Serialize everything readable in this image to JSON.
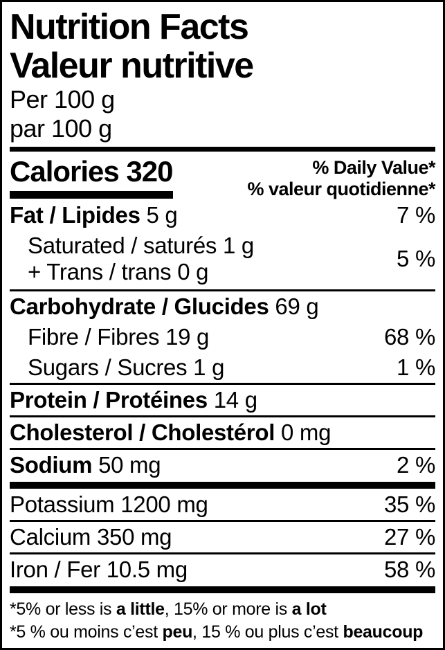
{
  "colors": {
    "text": "#000000",
    "background": "#ffffff",
    "rules": "#000000"
  },
  "header": {
    "title_en": "Nutrition Facts",
    "title_fr": "Valeur nutritive",
    "serving_en": "Per 100 g",
    "serving_fr": "par 100 g"
  },
  "calories": {
    "label": "Calories",
    "value": "320"
  },
  "daily_value": {
    "en": "% Daily Value*",
    "fr": "% valeur quotidienne*"
  },
  "nutrients": {
    "fat": {
      "label": "Fat / Lipides",
      "amount": "5 g",
      "dv": "7 %"
    },
    "saturated": {
      "label": "Saturated / saturés",
      "amount": "1 g"
    },
    "trans": {
      "label": "+ Trans / trans",
      "amount": "0 g"
    },
    "sat_trans_dv": "5 %",
    "carbohydrate": {
      "label": "Carbohydrate / Glucides",
      "amount": "69 g"
    },
    "fibre": {
      "label": "Fibre / Fibres",
      "amount": "19 g",
      "dv": "68 %"
    },
    "sugars": {
      "label": "Sugars / Sucres",
      "amount": "1 g",
      "dv": "1 %"
    },
    "protein": {
      "label": "Protein / Protéines",
      "amount": "14 g"
    },
    "cholesterol": {
      "label": "Cholesterol / Cholestérol",
      "amount": "0 mg"
    },
    "sodium": {
      "label": "Sodium",
      "amount": "50 mg",
      "dv": "2 %"
    },
    "potassium": {
      "label": "Potassium",
      "amount": "1200 mg",
      "dv": "35 %"
    },
    "calcium": {
      "label": "Calcium",
      "amount": "350 mg",
      "dv": "27 %"
    },
    "iron": {
      "label": "Iron / Fer",
      "amount": "10.5 mg",
      "dv": "58 %"
    }
  },
  "footnote": {
    "en": {
      "pre": "*5% or less is ",
      "bold1": "a little",
      "mid": ", 15% or more is ",
      "bold2": "a lot"
    },
    "fr": {
      "pre": "*5 % ou moins c’est ",
      "bold1": "peu",
      "mid": ", 15 % ou plus c’est ",
      "bold2": "beaucoup"
    }
  }
}
